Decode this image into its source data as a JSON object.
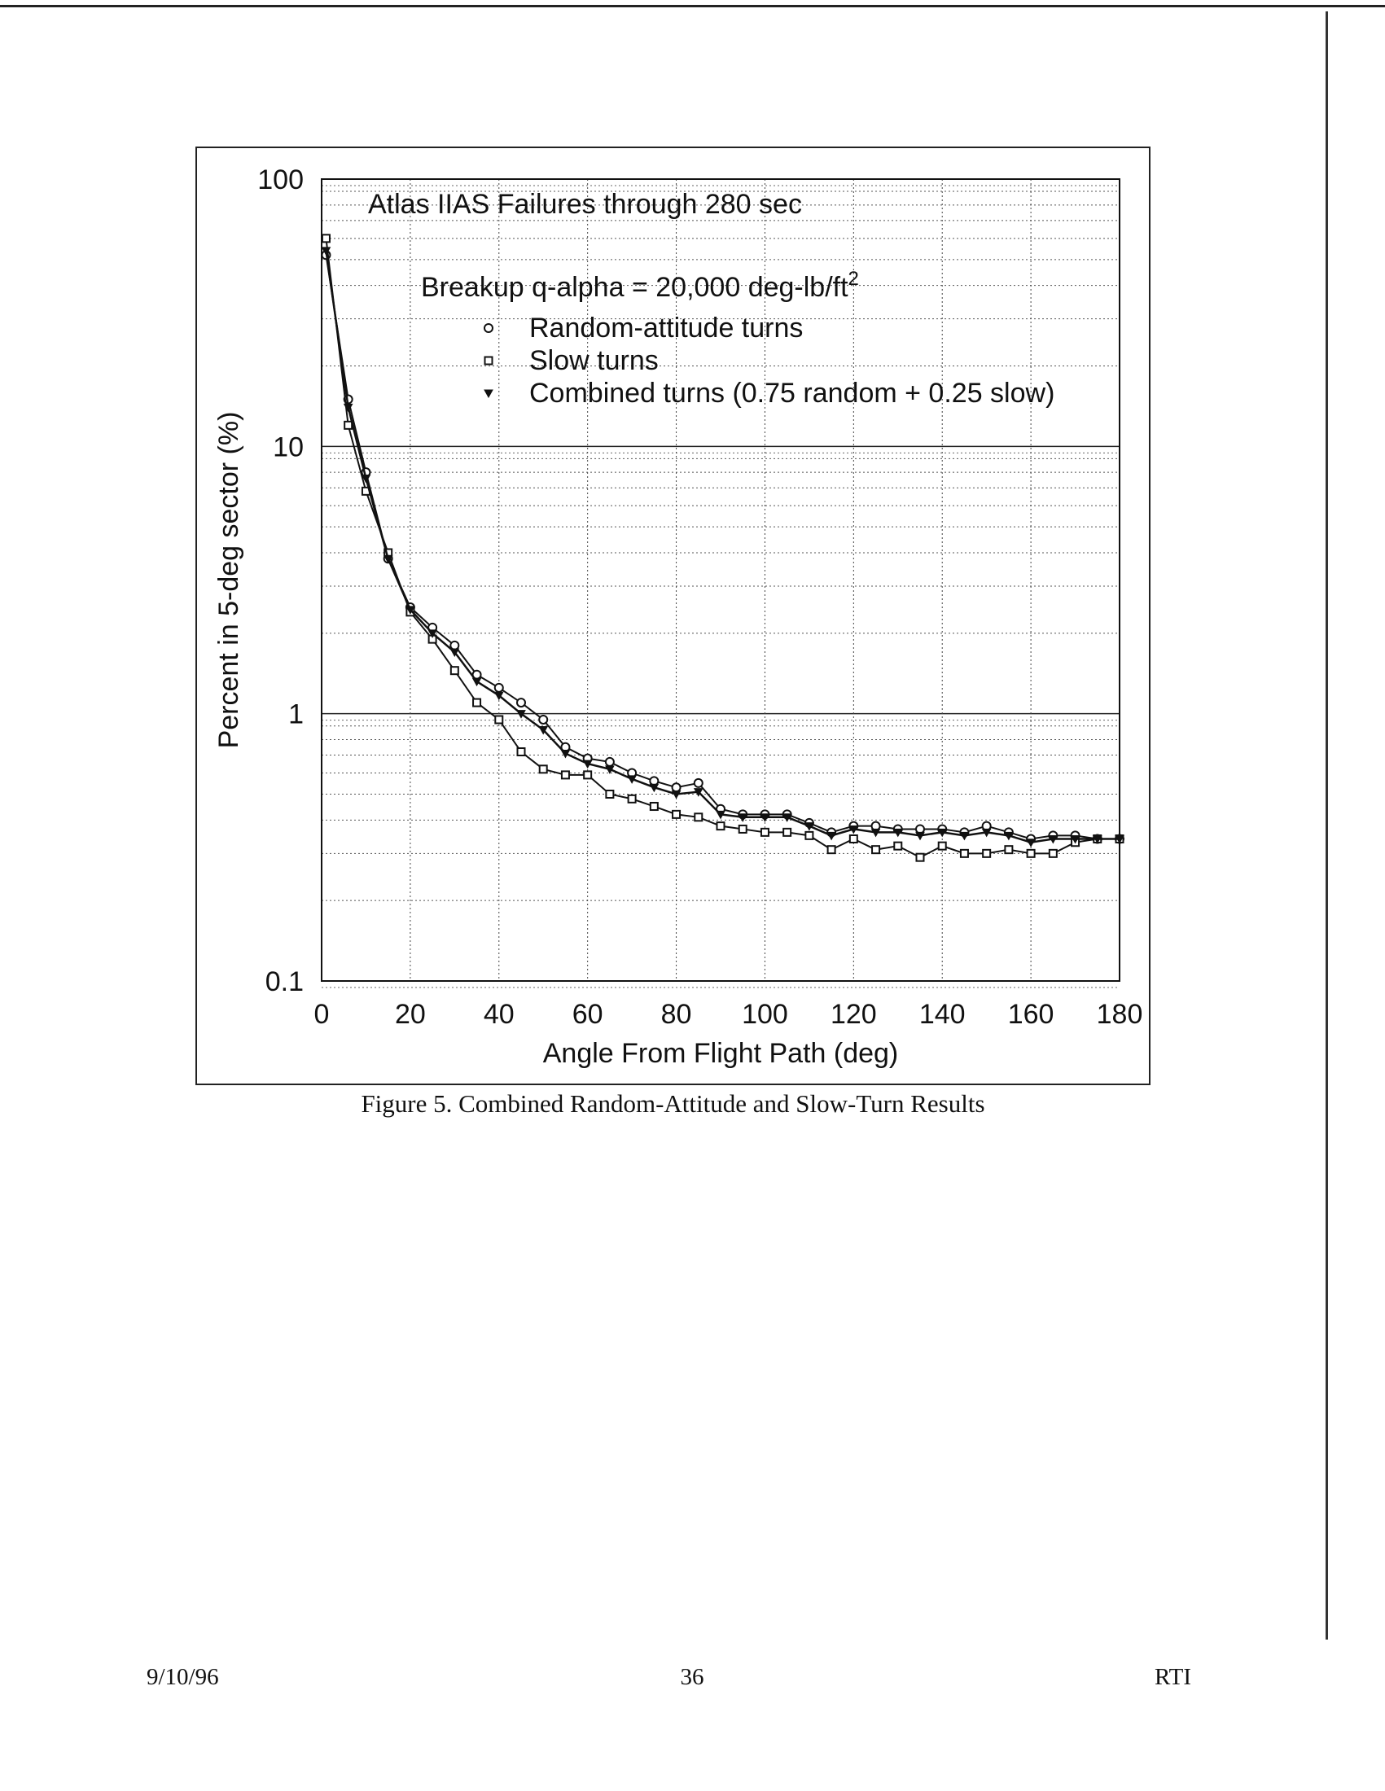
{
  "figure_caption": "Figure 5. Combined Random-Attitude and Slow-Turn Results",
  "footer": {
    "date": "9/10/96",
    "page": "36",
    "org": "RTI"
  },
  "chart_data": {
    "type": "line",
    "title": "Atlas IIAS Failures through 280 sec",
    "subtitle": "Breakup q-alpha = 20,000 deg-lb/ft",
    "subtitle_superscript": "2",
    "xlabel": "Angle From Flight Path (deg)",
    "ylabel": "Percent in 5-deg sector (%)",
    "xlim": [
      0,
      180
    ],
    "ylim": [
      0.1,
      100
    ],
    "y_scale": "log",
    "grid": true,
    "legend_position": "top-center",
    "x_ticks": [
      "0",
      "20",
      "40",
      "60",
      "80",
      "100",
      "120",
      "140",
      "160",
      "180"
    ],
    "y_ticks": [
      "0.1",
      "1",
      "10",
      "100"
    ],
    "x": [
      1,
      6,
      10,
      15,
      20,
      25,
      30,
      35,
      40,
      45,
      50,
      55,
      60,
      65,
      70,
      75,
      80,
      85,
      90,
      95,
      100,
      105,
      110,
      115,
      120,
      125,
      130,
      135,
      140,
      145,
      150,
      155,
      160,
      165,
      170,
      175,
      180
    ],
    "series": [
      {
        "name": "Random-attitude turns",
        "marker": "circle",
        "values": [
          52,
          15,
          8,
          3.8,
          2.5,
          2.1,
          1.8,
          1.4,
          1.25,
          1.1,
          0.95,
          0.75,
          0.68,
          0.66,
          0.6,
          0.56,
          0.53,
          0.55,
          0.44,
          0.42,
          0.42,
          0.42,
          0.39,
          0.36,
          0.38,
          0.38,
          0.37,
          0.37,
          0.37,
          0.36,
          0.38,
          0.36,
          0.34,
          0.35,
          0.35,
          0.34,
          0.34
        ]
      },
      {
        "name": "Slow turns",
        "marker": "square",
        "values": [
          60,
          12,
          6.8,
          4.0,
          2.4,
          1.9,
          1.45,
          1.1,
          0.95,
          0.72,
          0.62,
          0.59,
          0.59,
          0.5,
          0.48,
          0.45,
          0.42,
          0.41,
          0.38,
          0.37,
          0.36,
          0.36,
          0.35,
          0.31,
          0.34,
          0.31,
          0.32,
          0.29,
          0.32,
          0.3,
          0.3,
          0.31,
          0.3,
          0.3,
          0.33,
          0.34,
          0.34
        ]
      },
      {
        "name": "Combined turns (0.75 random + 0.25 slow)",
        "marker": "triangle",
        "values": [
          54,
          14,
          7.6,
          3.8,
          2.45,
          2.0,
          1.7,
          1.32,
          1.17,
          1.0,
          0.87,
          0.71,
          0.65,
          0.62,
          0.57,
          0.53,
          0.5,
          0.51,
          0.42,
          0.41,
          0.41,
          0.41,
          0.38,
          0.35,
          0.37,
          0.36,
          0.36,
          0.35,
          0.36,
          0.35,
          0.36,
          0.35,
          0.33,
          0.34,
          0.34,
          0.34,
          0.34
        ]
      }
    ]
  }
}
